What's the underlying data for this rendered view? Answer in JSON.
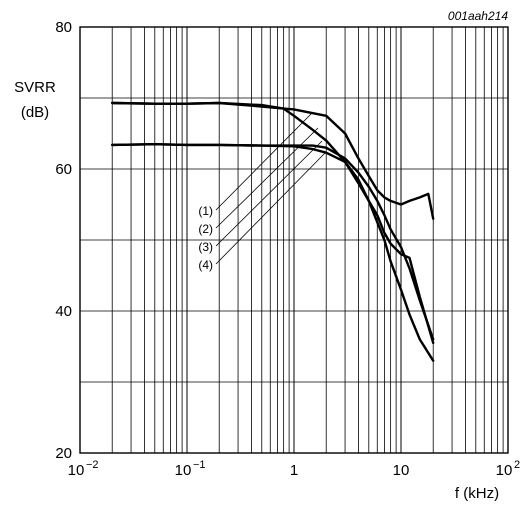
{
  "chart_data": {
    "type": "line",
    "figure_code": "001aah214",
    "ylabel_line1": "SVRR",
    "ylabel_line2": "(dB)",
    "xlabel": "f (kHz)",
    "x_scale": "log",
    "xlim": [
      0.01,
      100
    ],
    "ylim": [
      20,
      80
    ],
    "grid": true,
    "x_ticks": [
      {
        "base": "10",
        "exp": "−2"
      },
      {
        "base": "10",
        "exp": "−1"
      },
      {
        "base": "1",
        "exp": ""
      },
      {
        "base": "10",
        "exp": ""
      },
      {
        "base": "10",
        "exp": "2"
      }
    ],
    "y_ticks": [
      "20",
      "40",
      "60",
      "80"
    ],
    "curve_labels": [
      "(1)",
      "(2)",
      "(3)",
      "(4)"
    ],
    "series": [
      {
        "name": "(1)",
        "x": [
          0.02,
          0.05,
          0.1,
          0.2,
          0.5,
          0.8,
          1,
          2,
          3,
          4,
          5,
          6,
          7,
          8,
          10,
          12,
          15,
          18,
          20
        ],
        "y": [
          69.3,
          69.2,
          69.2,
          69.3,
          68.8,
          68.5,
          68.4,
          67.5,
          65.0,
          61.5,
          59.0,
          57.0,
          56.0,
          55.5,
          55.0,
          55.5,
          56.0,
          56.5,
          53.0
        ]
      },
      {
        "name": "(2)",
        "x": [
          0.02,
          0.05,
          0.1,
          0.2,
          0.5,
          0.8,
          1,
          1.5,
          2,
          3,
          4,
          5,
          6,
          7,
          8,
          10,
          12,
          15,
          20
        ],
        "y": [
          69.3,
          69.2,
          69.2,
          69.3,
          69.0,
          68.5,
          67.5,
          65.5,
          64.0,
          61.0,
          58.0,
          55.5,
          53.5,
          51.0,
          49.5,
          48.0,
          47.5,
          42.0,
          35.5
        ]
      },
      {
        "name": "(3)",
        "x": [
          0.02,
          0.05,
          0.1,
          0.2,
          0.5,
          1,
          1.5,
          2,
          3,
          4,
          5,
          6,
          7,
          8,
          10,
          12,
          15,
          20
        ],
        "y": [
          63.4,
          63.5,
          63.4,
          63.4,
          63.3,
          63.3,
          63.3,
          63.0,
          61.5,
          59.5,
          57.5,
          55.5,
          53.5,
          51.5,
          49.0,
          46.0,
          41.5,
          36.0
        ]
      },
      {
        "name": "(4)",
        "x": [
          0.02,
          0.05,
          0.1,
          0.2,
          0.5,
          1,
          1.5,
          2,
          3,
          4,
          5,
          6,
          7,
          8,
          10,
          12,
          15,
          20
        ],
        "y": [
          63.4,
          63.5,
          63.4,
          63.4,
          63.3,
          63.2,
          62.8,
          62.3,
          61.0,
          58.5,
          55.5,
          52.5,
          50.0,
          47.0,
          43.0,
          39.5,
          36.0,
          33.0
        ]
      }
    ]
  }
}
